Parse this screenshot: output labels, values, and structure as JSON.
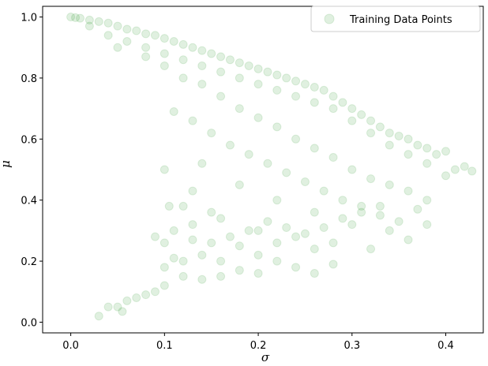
{
  "chart_data": {
    "type": "scatter",
    "title": "",
    "xlabel": "σ",
    "ylabel": "μ",
    "xlim": [
      -0.03,
      0.44
    ],
    "ylim": [
      -0.035,
      1.035
    ],
    "xticks": [
      "0.0",
      "0.1",
      "0.2",
      "0.3",
      "0.4"
    ],
    "xtick_values": [
      0.0,
      0.1,
      0.2,
      0.3,
      0.4
    ],
    "yticks": [
      "0.0",
      "0.2",
      "0.4",
      "0.6",
      "0.8",
      "1.0"
    ],
    "ytick_values": [
      0.0,
      0.2,
      0.4,
      0.6,
      0.8,
      1.0
    ],
    "grid": false,
    "legend_position": "top-right",
    "color": "#008000",
    "marker_alpha": 0.12,
    "series": [
      {
        "name": "Training Data Points",
        "points": [
          [
            0.0,
            1.0
          ],
          [
            0.005,
            0.998
          ],
          [
            0.01,
            0.996
          ],
          [
            0.02,
            0.99
          ],
          [
            0.03,
            0.985
          ],
          [
            0.04,
            0.98
          ],
          [
            0.05,
            0.97
          ],
          [
            0.06,
            0.96
          ],
          [
            0.07,
            0.955
          ],
          [
            0.08,
            0.945
          ],
          [
            0.09,
            0.94
          ],
          [
            0.1,
            0.93
          ],
          [
            0.11,
            0.92
          ],
          [
            0.12,
            0.91
          ],
          [
            0.13,
            0.9
          ],
          [
            0.14,
            0.89
          ],
          [
            0.15,
            0.88
          ],
          [
            0.16,
            0.87
          ],
          [
            0.17,
            0.86
          ],
          [
            0.18,
            0.85
          ],
          [
            0.19,
            0.84
          ],
          [
            0.2,
            0.83
          ],
          [
            0.21,
            0.82
          ],
          [
            0.22,
            0.81
          ],
          [
            0.23,
            0.8
          ],
          [
            0.24,
            0.79
          ],
          [
            0.25,
            0.78
          ],
          [
            0.26,
            0.77
          ],
          [
            0.27,
            0.76
          ],
          [
            0.28,
            0.74
          ],
          [
            0.29,
            0.72
          ],
          [
            0.3,
            0.7
          ],
          [
            0.31,
            0.68
          ],
          [
            0.32,
            0.66
          ],
          [
            0.33,
            0.64
          ],
          [
            0.34,
            0.62
          ],
          [
            0.35,
            0.61
          ],
          [
            0.36,
            0.6
          ],
          [
            0.37,
            0.58
          ],
          [
            0.38,
            0.57
          ],
          [
            0.39,
            0.55
          ],
          [
            0.4,
            0.56
          ],
          [
            0.41,
            0.5
          ],
          [
            0.42,
            0.51
          ],
          [
            0.428,
            0.495
          ],
          [
            0.05,
            0.9
          ],
          [
            0.08,
            0.87
          ],
          [
            0.1,
            0.84
          ],
          [
            0.12,
            0.8
          ],
          [
            0.14,
            0.78
          ],
          [
            0.16,
            0.74
          ],
          [
            0.18,
            0.7
          ],
          [
            0.2,
            0.67
          ],
          [
            0.22,
            0.64
          ],
          [
            0.24,
            0.6
          ],
          [
            0.26,
            0.57
          ],
          [
            0.28,
            0.54
          ],
          [
            0.3,
            0.5
          ],
          [
            0.32,
            0.47
          ],
          [
            0.34,
            0.45
          ],
          [
            0.36,
            0.43
          ],
          [
            0.38,
            0.4
          ],
          [
            0.02,
            0.97
          ],
          [
            0.04,
            0.94
          ],
          [
            0.06,
            0.92
          ],
          [
            0.08,
            0.9
          ],
          [
            0.1,
            0.88
          ],
          [
            0.12,
            0.86
          ],
          [
            0.14,
            0.84
          ],
          [
            0.16,
            0.82
          ],
          [
            0.18,
            0.8
          ],
          [
            0.2,
            0.78
          ],
          [
            0.22,
            0.76
          ],
          [
            0.24,
            0.74
          ],
          [
            0.26,
            0.72
          ],
          [
            0.28,
            0.7
          ],
          [
            0.3,
            0.66
          ],
          [
            0.32,
            0.62
          ],
          [
            0.34,
            0.58
          ],
          [
            0.36,
            0.55
          ],
          [
            0.38,
            0.52
          ],
          [
            0.4,
            0.48
          ],
          [
            0.11,
            0.69
          ],
          [
            0.13,
            0.66
          ],
          [
            0.15,
            0.62
          ],
          [
            0.17,
            0.58
          ],
          [
            0.19,
            0.55
          ],
          [
            0.21,
            0.52
          ],
          [
            0.23,
            0.49
          ],
          [
            0.25,
            0.46
          ],
          [
            0.27,
            0.43
          ],
          [
            0.29,
            0.4
          ],
          [
            0.31,
            0.38
          ],
          [
            0.33,
            0.35
          ],
          [
            0.35,
            0.33
          ],
          [
            0.37,
            0.37
          ],
          [
            0.1,
            0.5
          ],
          [
            0.14,
            0.52
          ],
          [
            0.18,
            0.45
          ],
          [
            0.22,
            0.4
          ],
          [
            0.26,
            0.36
          ],
          [
            0.3,
            0.32
          ],
          [
            0.34,
            0.3
          ],
          [
            0.38,
            0.32
          ],
          [
            0.2,
            0.3
          ],
          [
            0.24,
            0.28
          ],
          [
            0.28,
            0.26
          ],
          [
            0.32,
            0.24
          ],
          [
            0.36,
            0.27
          ],
          [
            0.16,
            0.34
          ],
          [
            0.12,
            0.38
          ],
          [
            0.18,
            0.25
          ],
          [
            0.2,
            0.22
          ],
          [
            0.22,
            0.2
          ],
          [
            0.24,
            0.18
          ],
          [
            0.26,
            0.16
          ],
          [
            0.28,
            0.19
          ],
          [
            0.16,
            0.2
          ],
          [
            0.14,
            0.22
          ],
          [
            0.12,
            0.2
          ],
          [
            0.1,
            0.18
          ],
          [
            0.12,
            0.15
          ],
          [
            0.14,
            0.14
          ],
          [
            0.1,
            0.12
          ],
          [
            0.09,
            0.1
          ],
          [
            0.08,
            0.09
          ],
          [
            0.07,
            0.08
          ],
          [
            0.06,
            0.07
          ],
          [
            0.05,
            0.05
          ],
          [
            0.04,
            0.05
          ],
          [
            0.03,
            0.02
          ],
          [
            0.055,
            0.035
          ],
          [
            0.1,
            0.26
          ],
          [
            0.11,
            0.3
          ],
          [
            0.13,
            0.27
          ],
          [
            0.15,
            0.26
          ],
          [
            0.17,
            0.28
          ],
          [
            0.19,
            0.3
          ],
          [
            0.21,
            0.33
          ],
          [
            0.23,
            0.31
          ],
          [
            0.25,
            0.29
          ],
          [
            0.27,
            0.31
          ],
          [
            0.29,
            0.34
          ],
          [
            0.31,
            0.36
          ],
          [
            0.33,
            0.38
          ],
          [
            0.13,
            0.32
          ],
          [
            0.15,
            0.36
          ],
          [
            0.09,
            0.28
          ],
          [
            0.11,
            0.21
          ],
          [
            0.22,
            0.26
          ],
          [
            0.26,
            0.24
          ],
          [
            0.2,
            0.16
          ],
          [
            0.18,
            0.17
          ],
          [
            0.16,
            0.15
          ],
          [
            0.105,
            0.38
          ],
          [
            0.13,
            0.43
          ]
        ]
      }
    ]
  }
}
